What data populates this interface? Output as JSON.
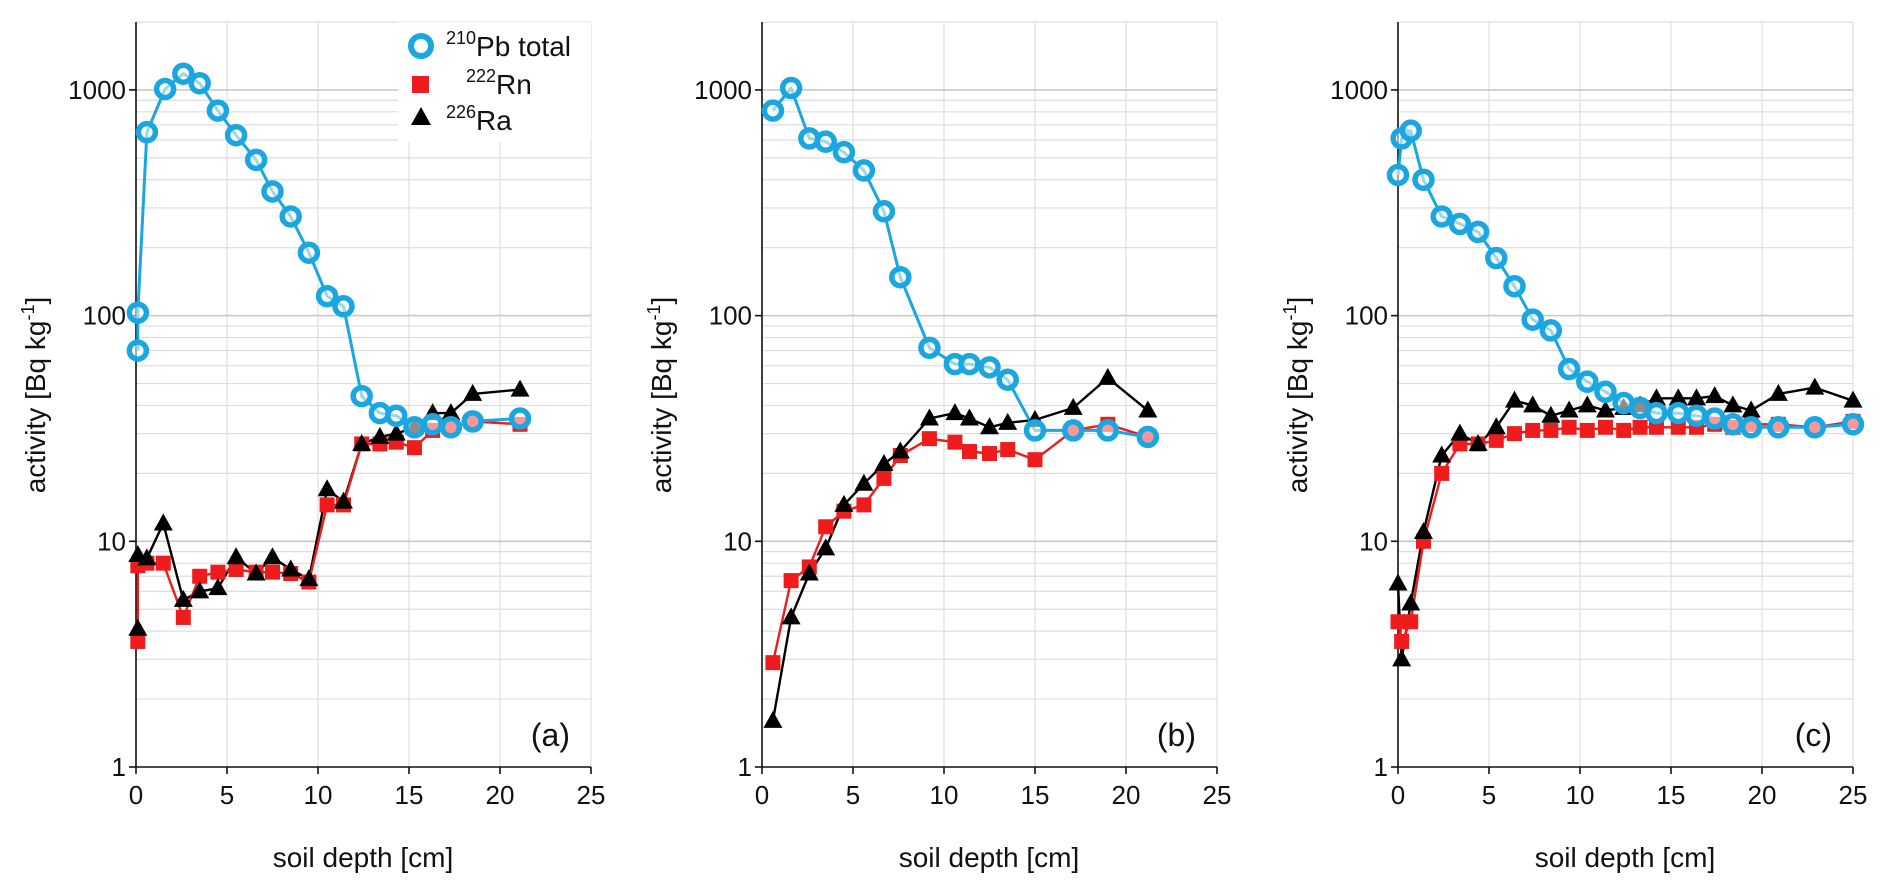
{
  "colors": {
    "pb210": "#1aa6e0",
    "rn222": "#ee1c1c",
    "ra226": "#000000"
  },
  "chart_data": [
    {
      "type": "line",
      "panel_label": "(a)",
      "xlabel": "soil depth [cm]",
      "ylabel": "activity [Bq kg",
      "ylabel_sup": "-1",
      "ylabel_end": "]",
      "yscale": "log",
      "xlim": [
        0,
        25
      ],
      "ylim": [
        1,
        2000
      ],
      "x_ticks": [
        "0",
        "5",
        "10",
        "15",
        "20",
        "25"
      ],
      "y_ticks": [
        "1",
        "10",
        "100",
        "1000"
      ],
      "legend": {
        "placement": "top-right",
        "entries": [
          {
            "iso": "210",
            "el": "Pb total"
          },
          {
            "iso": "222",
            "el": "Rn"
          },
          {
            "iso": "226",
            "el": "Ra"
          }
        ]
      },
      "series": [
        {
          "name": "210Pb total",
          "marker": "circle",
          "x": [
            0.1,
            0.1,
            0.6,
            1.6,
            2.6,
            3.5,
            4.5,
            5.5,
            6.6,
            7.5,
            8.5,
            9.5,
            10.5,
            11.4,
            12.4,
            13.4,
            14.3,
            15.3,
            16.3,
            17.3,
            18.5,
            21.1
          ],
          "y": [
            70,
            103,
            650,
            1010,
            1180,
            1070,
            810,
            630,
            490,
            355,
            275,
            190,
            122,
            110,
            44,
            37,
            36,
            32,
            33,
            32,
            34,
            35
          ]
        },
        {
          "name": "222Rn",
          "marker": "square",
          "x": [
            0.1,
            0.1,
            0.6,
            1.5,
            2.6,
            3.5,
            4.5,
            5.5,
            6.6,
            7.5,
            8.5,
            9.5,
            10.5,
            11.4,
            12.4,
            13.4,
            14.3,
            15.3,
            16.3,
            17.3,
            18.5,
            21.1
          ],
          "y": [
            3.6,
            7.8,
            8.0,
            8.0,
            4.6,
            7.0,
            7.3,
            7.5,
            7.3,
            7.3,
            7.2,
            6.6,
            14.5,
            14.5,
            27,
            27,
            27.5,
            26,
            31,
            32,
            34,
            33
          ]
        },
        {
          "name": "226Ra",
          "marker": "triangle",
          "x": [
            0.1,
            0.1,
            0.6,
            1.5,
            2.6,
            3.5,
            4.5,
            5.5,
            6.6,
            7.5,
            8.5,
            9.5,
            10.5,
            11.4,
            12.4,
            13.4,
            14.3,
            15.3,
            16.3,
            17.3,
            18.5,
            21.1
          ],
          "y": [
            4.1,
            8.7,
            8.4,
            12,
            5.5,
            6.0,
            6.2,
            8.5,
            7.2,
            8.5,
            7.5,
            6.8,
            17,
            15,
            27,
            29,
            30,
            32,
            37,
            37,
            45,
            47
          ]
        }
      ]
    },
    {
      "type": "line",
      "panel_label": "(b)",
      "xlabel": "soil depth [cm]",
      "ylabel": "activity [Bq kg",
      "ylabel_sup": "-1",
      "ylabel_end": "]",
      "yscale": "log",
      "xlim": [
        0,
        25
      ],
      "ylim": [
        1,
        2000
      ],
      "x_ticks": [
        "0",
        "5",
        "10",
        "15",
        "20",
        "25"
      ],
      "y_ticks": [
        "1",
        "10",
        "100",
        "1000"
      ],
      "series": [
        {
          "name": "210Pb total",
          "marker": "circle",
          "x": [
            0.6,
            1.6,
            2.6,
            3.5,
            4.5,
            5.6,
            6.7,
            7.6,
            9.2,
            10.6,
            11.4,
            12.5,
            13.5,
            15.0,
            17.1,
            19.0,
            21.2
          ],
          "y": [
            810,
            1020,
            610,
            590,
            530,
            440,
            290,
            148,
            72,
            61,
            61,
            59,
            52,
            31,
            31,
            31,
            29
          ]
        },
        {
          "name": "222Rn",
          "marker": "square",
          "x": [
            0.6,
            1.6,
            2.6,
            3.5,
            4.5,
            5.6,
            6.7,
            7.6,
            9.2,
            10.6,
            11.4,
            12.5,
            13.5,
            15.0,
            17.1,
            19.0,
            21.2
          ],
          "y": [
            2.9,
            6.7,
            7.7,
            11.6,
            13.6,
            14.5,
            19,
            24,
            28.5,
            27.5,
            25,
            24.5,
            25.5,
            23,
            31,
            33,
            29
          ]
        },
        {
          "name": "226Ra",
          "marker": "triangle",
          "x": [
            0.6,
            1.6,
            2.6,
            3.5,
            4.5,
            5.6,
            6.7,
            7.6,
            9.2,
            10.6,
            11.4,
            12.5,
            13.5,
            15.0,
            17.1,
            19.0,
            21.2
          ],
          "y": [
            1.6,
            4.6,
            7.2,
            9.3,
            14.5,
            18,
            22,
            25,
            35,
            37,
            35,
            32,
            33.5,
            34.5,
            39,
            53,
            38
          ]
        }
      ]
    },
    {
      "type": "line",
      "panel_label": "(c)",
      "xlabel": "soil depth [cm]",
      "ylabel": "activity [Bq kg",
      "ylabel_sup": "-1",
      "ylabel_end": "]",
      "yscale": "log",
      "xlim": [
        0,
        25
      ],
      "ylim": [
        1,
        2000
      ],
      "x_ticks": [
        "0",
        "5",
        "10",
        "15",
        "20",
        "25"
      ],
      "y_ticks": [
        "1",
        "10",
        "100",
        "1000"
      ],
      "series": [
        {
          "name": "210Pb total",
          "marker": "circle",
          "x": [
            0.0,
            0.2,
            0.7,
            1.4,
            2.4,
            3.4,
            4.4,
            5.4,
            6.4,
            7.4,
            8.4,
            9.4,
            10.4,
            11.4,
            12.4,
            13.3,
            14.2,
            15.4,
            16.4,
            17.4,
            18.4,
            19.4,
            20.9,
            22.9,
            25.0
          ],
          "y": [
            420,
            610,
            660,
            400,
            275,
            255,
            235,
            180,
            135,
            96,
            86,
            58,
            51,
            46,
            41,
            39,
            37,
            37,
            36,
            35,
            33,
            32,
            32,
            32,
            33
          ]
        },
        {
          "name": "222Rn",
          "marker": "square",
          "x": [
            0.0,
            0.2,
            0.7,
            1.4,
            2.4,
            3.4,
            4.4,
            5.4,
            6.4,
            7.4,
            8.4,
            9.4,
            10.4,
            11.4,
            12.4,
            13.3,
            14.2,
            15.4,
            16.4,
            17.4,
            18.4,
            19.4,
            20.9,
            22.9,
            25.0
          ],
          "y": [
            4.4,
            3.6,
            4.4,
            10,
            20,
            27,
            27,
            28,
            30,
            31,
            31,
            32,
            31,
            32,
            31,
            32,
            32,
            32,
            32,
            33,
            32,
            33,
            33,
            32,
            34
          ]
        },
        {
          "name": "226Ra",
          "marker": "triangle",
          "x": [
            0.0,
            0.2,
            0.7,
            1.4,
            2.4,
            3.4,
            4.4,
            5.4,
            6.4,
            7.4,
            8.4,
            9.4,
            10.4,
            11.4,
            12.4,
            13.3,
            14.2,
            15.4,
            16.4,
            17.4,
            18.4,
            19.4,
            20.9,
            22.9,
            25.0
          ],
          "y": [
            6.5,
            3.0,
            5.3,
            11,
            24,
            30,
            27,
            32,
            42,
            40,
            36,
            38,
            40,
            38,
            39,
            40,
            43,
            43,
            43,
            44,
            40,
            38,
            45,
            48,
            42
          ]
        }
      ]
    }
  ]
}
